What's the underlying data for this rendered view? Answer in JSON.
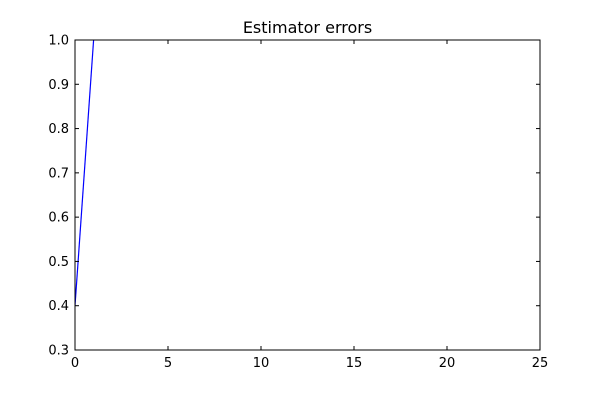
{
  "chart_data": {
    "type": "line",
    "title": "Estimator errors",
    "xlabel": "",
    "ylabel": "",
    "xlim": [
      0,
      25
    ],
    "ylim": [
      0.3,
      1.0
    ],
    "x_ticks": [
      0,
      5,
      10,
      15,
      20,
      25
    ],
    "x_tick_labels": [
      "0",
      "5",
      "10",
      "15",
      "20",
      "25"
    ],
    "y_ticks": [
      0.3,
      0.4,
      0.5,
      0.6,
      0.7,
      0.8,
      0.9,
      1.0
    ],
    "y_tick_labels": [
      "0.3",
      "0.4",
      "0.5",
      "0.6",
      "0.7",
      "0.8",
      "0.9",
      "1.0"
    ],
    "grid": false,
    "legend": "none",
    "series": [
      {
        "color": "#0000ff",
        "x": [
          0,
          1
        ],
        "y": [
          0.4,
          1.0
        ]
      }
    ]
  }
}
